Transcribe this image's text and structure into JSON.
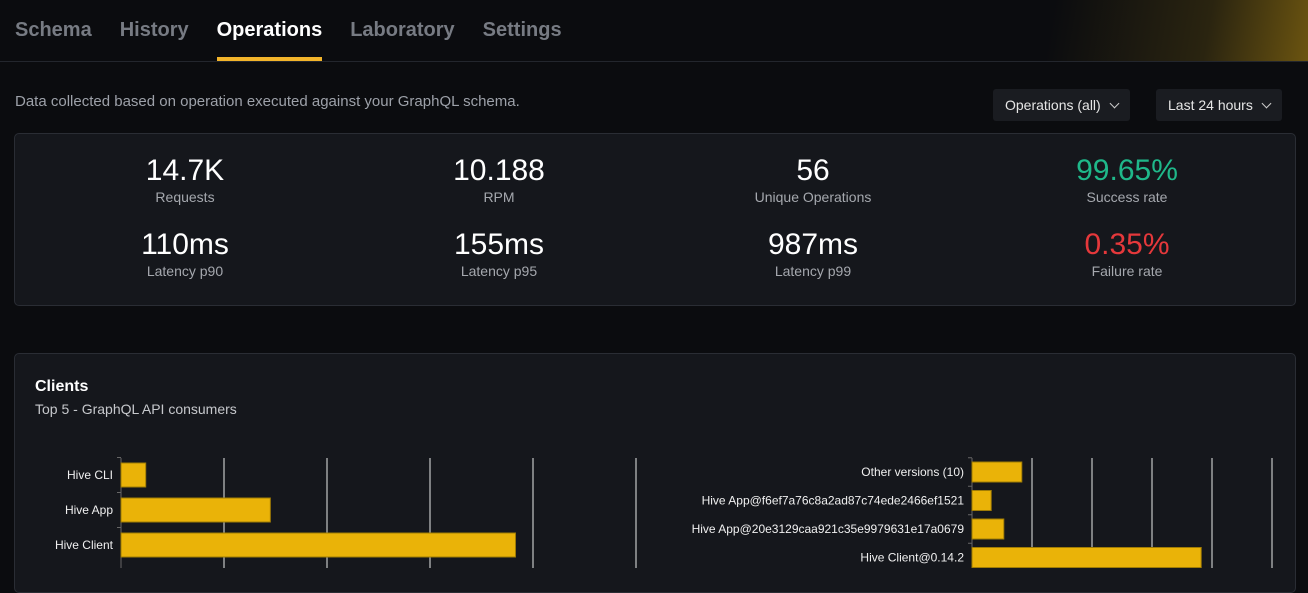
{
  "tabs": [
    {
      "label": "Schema"
    },
    {
      "label": "History"
    },
    {
      "label": "Operations",
      "active": true
    },
    {
      "label": "Laboratory"
    },
    {
      "label": "Settings"
    }
  ],
  "description": "Data collected based on operation executed against your GraphQL schema.",
  "filters": {
    "operations": "Operations (all)",
    "period": "Last 24 hours"
  },
  "stats": [
    {
      "value": "14.7K",
      "label": "Requests"
    },
    {
      "value": "10.188",
      "label": "RPM"
    },
    {
      "value": "56",
      "label": "Unique Operations"
    },
    {
      "value": "99.65%",
      "label": "Success rate",
      "color": "#1fb88a"
    },
    {
      "value": "110ms",
      "label": "Latency p90"
    },
    {
      "value": "155ms",
      "label": "Latency p95"
    },
    {
      "value": "987ms",
      "label": "Latency p99"
    },
    {
      "value": "0.35%",
      "label": "Failure rate",
      "color": "#e5383b"
    }
  ],
  "clients": {
    "title": "Clients",
    "subtitle": "Top 5 - GraphQL API consumers"
  },
  "chart_data": [
    {
      "type": "bar",
      "orientation": "horizontal",
      "bar_color": "#eab308",
      "grid": true,
      "categories": [
        "Hive CLI",
        "Hive App",
        "Hive Client"
      ],
      "values": [
        0.24,
        1.45,
        3.83
      ],
      "xlim": [
        0,
        5
      ]
    },
    {
      "type": "bar",
      "orientation": "horizontal",
      "bar_color": "#eab308",
      "grid": true,
      "categories": [
        "Other versions (10)",
        "Hive App@f6ef7a76c8a2ad87c74ede2466ef1521",
        "Hive App@20e3129caa921c35e9979631e17a0679",
        "Hive Client@0.14.2"
      ],
      "values": [
        0.83,
        0.32,
        0.53,
        3.82
      ],
      "xlim": [
        0,
        5
      ]
    }
  ]
}
